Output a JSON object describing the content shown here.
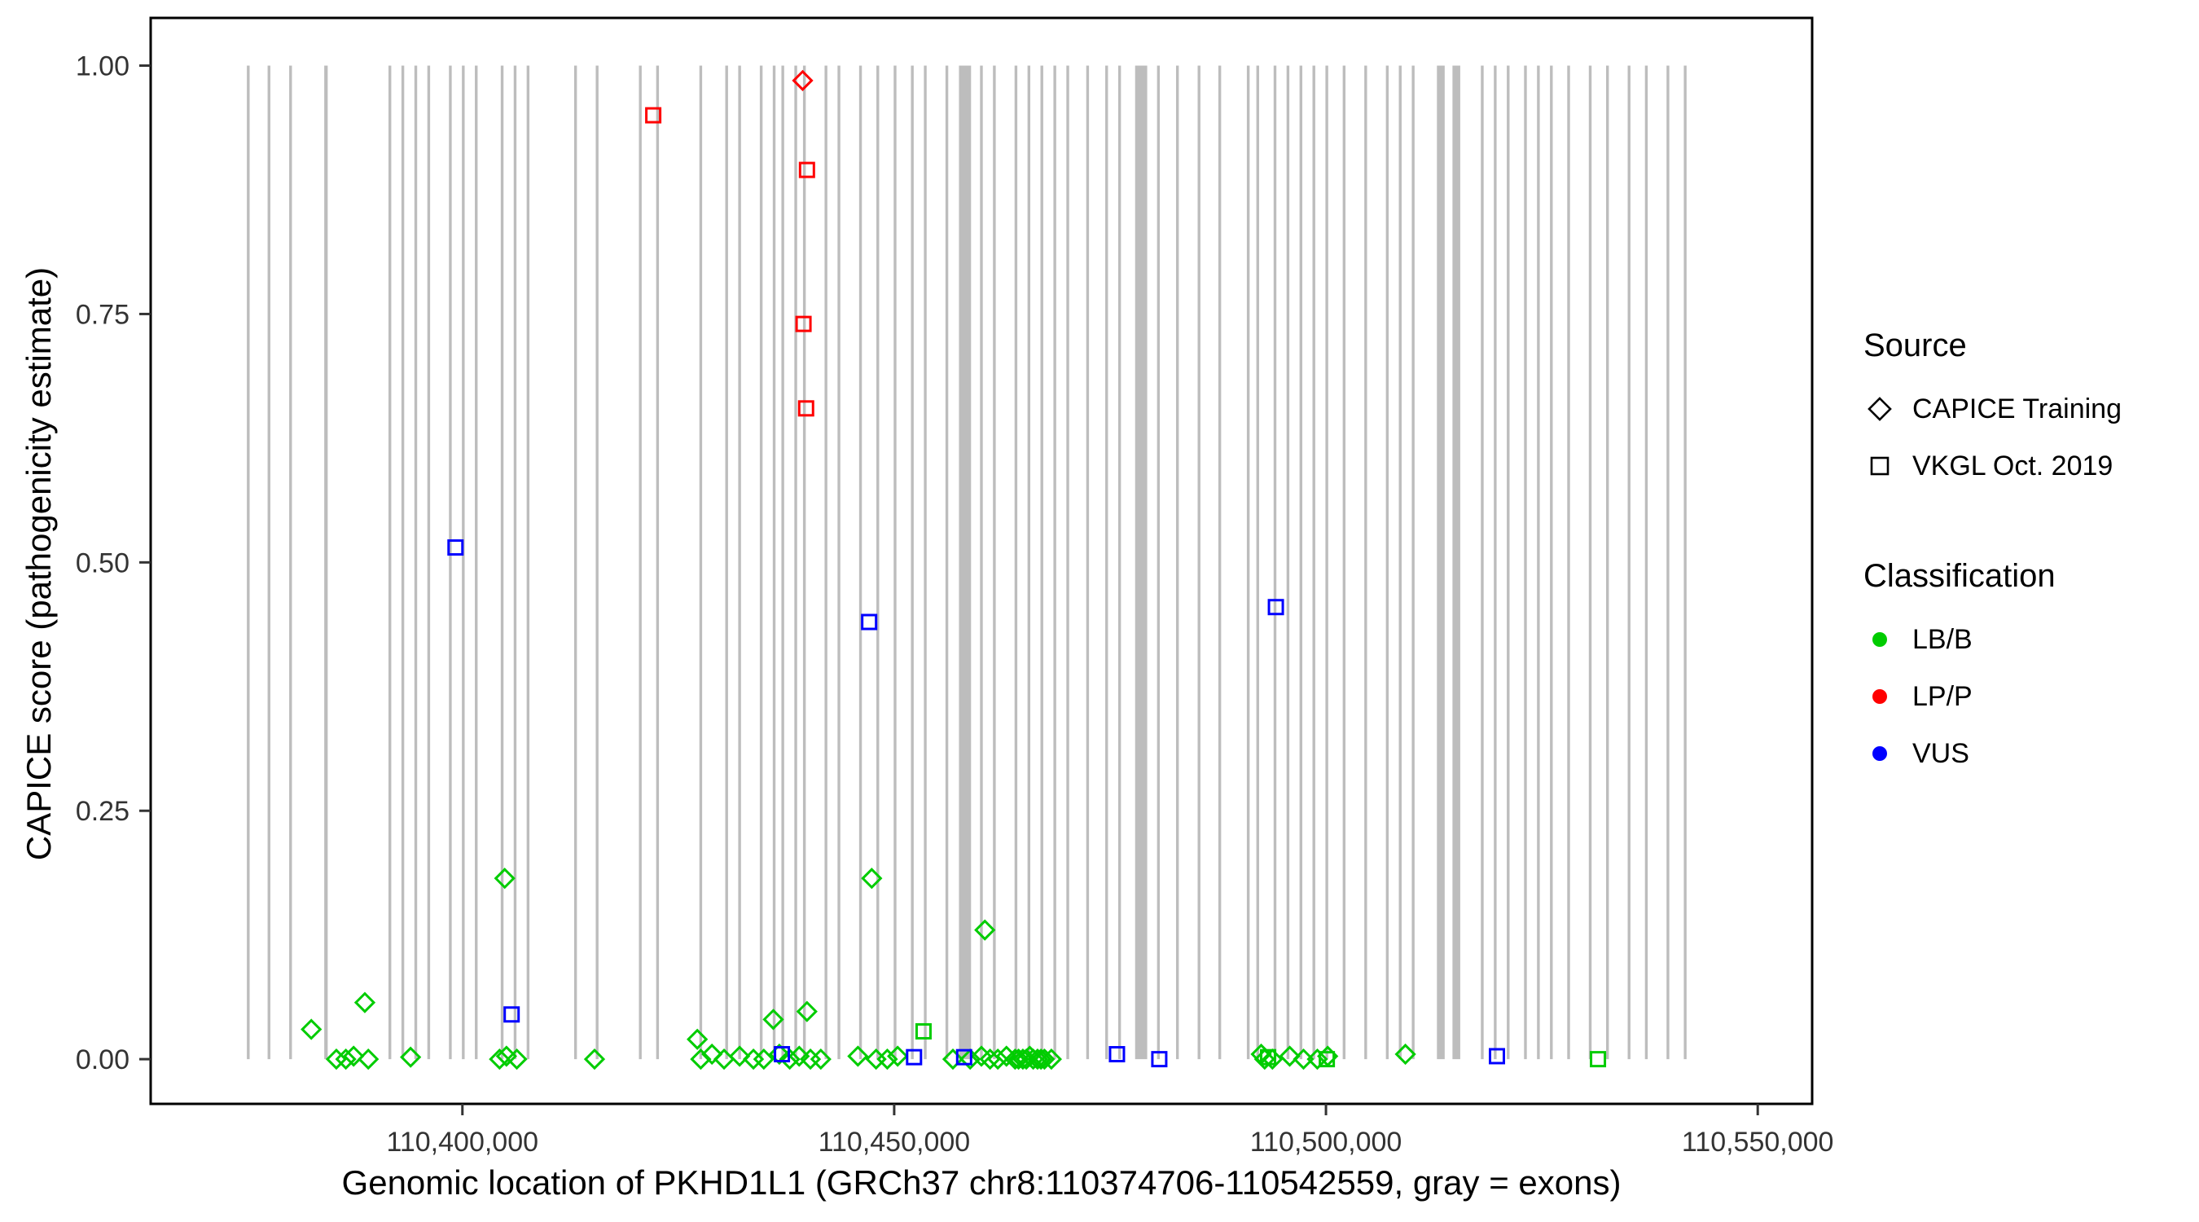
{
  "chart_data": {
    "type": "scatter",
    "title": "",
    "xlabel": "Genomic location of PKHD1L1 (GRCh37 chr8:110374706-110542559, gray = exons)",
    "ylabel": "CAPICE score (pathogenicity estimate)",
    "xlim": [
      110363900,
      110556300
    ],
    "ylim": [
      -0.045,
      1.048
    ],
    "x_ticks": {
      "values": [
        110400000,
        110450000,
        110500000,
        110550000
      ],
      "labels": [
        "110,400,000",
        "110,450,000",
        "110,500,000",
        "110,550,000"
      ]
    },
    "y_ticks": {
      "values": [
        0,
        0.25,
        0.5,
        0.75,
        1.0
      ],
      "labels": [
        "0.00",
        "0.25",
        "0.50",
        "0.75",
        "1.00"
      ]
    },
    "colors": {
      "LB/B": "#00cc00",
      "LP/P": "#ff0000",
      "VUS": "#0000ff",
      "exon": "#bdbdbd",
      "axis": "#333333"
    },
    "exons": [
      [
        110375200,
        300
      ],
      [
        110377600,
        300
      ],
      [
        110380100,
        300
      ],
      [
        110384200,
        400
      ],
      [
        110391600,
        300
      ],
      [
        110393100,
        300
      ],
      [
        110394600,
        300
      ],
      [
        110396100,
        300
      ],
      [
        110398600,
        300
      ],
      [
        110400100,
        300
      ],
      [
        110401600,
        300
      ],
      [
        110404600,
        300
      ],
      [
        110406100,
        300
      ],
      [
        110407600,
        300
      ],
      [
        110413100,
        300
      ],
      [
        110415600,
        300
      ],
      [
        110420600,
        300
      ],
      [
        110422600,
        300
      ],
      [
        110427600,
        300
      ],
      [
        110430600,
        300
      ],
      [
        110432100,
        300
      ],
      [
        110434600,
        300
      ],
      [
        110436100,
        300
      ],
      [
        110437100,
        300
      ],
      [
        110438600,
        300
      ],
      [
        110439600,
        300
      ],
      [
        110442100,
        300
      ],
      [
        110443600,
        300
      ],
      [
        110446100,
        300
      ],
      [
        110448100,
        300
      ],
      [
        110450100,
        300
      ],
      [
        110452100,
        300
      ],
      [
        110453600,
        300
      ],
      [
        110456100,
        300
      ],
      [
        110458200,
        1400
      ],
      [
        110460100,
        300
      ],
      [
        110461600,
        300
      ],
      [
        110464100,
        300
      ],
      [
        110465600,
        300
      ],
      [
        110467100,
        300
      ],
      [
        110468600,
        300
      ],
      [
        110470100,
        300
      ],
      [
        110472400,
        300
      ],
      [
        110474600,
        300
      ],
      [
        110476100,
        300
      ],
      [
        110478600,
        1400
      ],
      [
        110480600,
        300
      ],
      [
        110482800,
        300
      ],
      [
        110485300,
        300
      ],
      [
        110487700,
        300
      ],
      [
        110491000,
        300
      ],
      [
        110492100,
        300
      ],
      [
        110494100,
        300
      ],
      [
        110495600,
        300
      ],
      [
        110497100,
        300
      ],
      [
        110498600,
        300
      ],
      [
        110500100,
        300
      ],
      [
        110502100,
        300
      ],
      [
        110504600,
        300
      ],
      [
        110507100,
        300
      ],
      [
        110508600,
        300
      ],
      [
        110510100,
        300
      ],
      [
        110513300,
        900
      ],
      [
        110515100,
        900
      ],
      [
        110518100,
        300
      ],
      [
        110519600,
        300
      ],
      [
        110521100,
        300
      ],
      [
        110523100,
        300
      ],
      [
        110524600,
        300
      ],
      [
        110526100,
        300
      ],
      [
        110528100,
        300
      ],
      [
        110530600,
        300
      ],
      [
        110532600,
        300
      ],
      [
        110535100,
        300
      ],
      [
        110537100,
        300
      ],
      [
        110539600,
        300
      ],
      [
        110541600,
        300
      ]
    ],
    "series": [
      {
        "name": "LB/B — CAPICE Training",
        "classification": "LB/B",
        "source": "CAPICE Training",
        "shape": "diamond",
        "color": "#00cc00",
        "points": [
          [
            110382500,
            0.03
          ],
          [
            110385400,
            0
          ],
          [
            110386500,
            0
          ],
          [
            110387400,
            0.003
          ],
          [
            110388700,
            0.057
          ],
          [
            110389100,
            0
          ],
          [
            110394000,
            0.002
          ],
          [
            110404300,
            0
          ],
          [
            110404900,
            0.182
          ],
          [
            110405100,
            0.003
          ],
          [
            110406300,
            0
          ],
          [
            110415300,
            0
          ],
          [
            110427200,
            0.02
          ],
          [
            110427600,
            0
          ],
          [
            110428900,
            0.005
          ],
          [
            110430300,
            0
          ],
          [
            110432100,
            0.003
          ],
          [
            110433700,
            0
          ],
          [
            110434900,
            0
          ],
          [
            110436000,
            0.04
          ],
          [
            110436700,
            0.005
          ],
          [
            110437900,
            0
          ],
          [
            110439000,
            0.003
          ],
          [
            110439900,
            0.048
          ],
          [
            110440300,
            0
          ],
          [
            110441500,
            0
          ],
          [
            110445800,
            0.003
          ],
          [
            110447400,
            0.182
          ],
          [
            110447900,
            0
          ],
          [
            110449200,
            0
          ],
          [
            110450400,
            0.003
          ],
          [
            110456800,
            0
          ],
          [
            110458800,
            0
          ],
          [
            110460100,
            0.003
          ],
          [
            110460500,
            0.13
          ],
          [
            110461100,
            0
          ],
          [
            110462000,
            0
          ],
          [
            110463000,
            0.003
          ],
          [
            110464000,
            0
          ],
          [
            110464400,
            0
          ],
          [
            110464900,
            0
          ],
          [
            110465300,
            0
          ],
          [
            110465700,
            0.003
          ],
          [
            110466100,
            0
          ],
          [
            110466600,
            0
          ],
          [
            110467000,
            0
          ],
          [
            110467400,
            0
          ],
          [
            110468200,
            0
          ],
          [
            110492500,
            0.005
          ],
          [
            110492900,
            0
          ],
          [
            110493800,
            0
          ],
          [
            110495800,
            0.003
          ],
          [
            110497400,
            0
          ],
          [
            110499000,
            0
          ],
          [
            110500200,
            0.003
          ],
          [
            110509200,
            0.005
          ]
        ]
      },
      {
        "name": "LB/B — VKGL Oct. 2019",
        "classification": "LB/B",
        "source": "VKGL Oct. 2019",
        "shape": "square",
        "color": "#00cc00",
        "points": [
          [
            110453400,
            0.028
          ],
          [
            110493300,
            0.002
          ],
          [
            110500100,
            0
          ],
          [
            110531500,
            0
          ]
        ]
      },
      {
        "name": "VUS — VKGL Oct. 2019",
        "classification": "VUS",
        "source": "VKGL Oct. 2019",
        "shape": "square",
        "color": "#0000ff",
        "points": [
          [
            110399200,
            0.515
          ],
          [
            110447100,
            0.44
          ],
          [
            110494200,
            0.455
          ],
          [
            110405700,
            0.045
          ],
          [
            110437000,
            0.005
          ],
          [
            110452300,
            0.002
          ],
          [
            110458100,
            0.002
          ],
          [
            110475800,
            0.005
          ],
          [
            110480700,
            0
          ],
          [
            110519800,
            0.003
          ]
        ]
      },
      {
        "name": "LP/P — VKGL Oct. 2019",
        "classification": "LP/P",
        "source": "VKGL Oct. 2019",
        "shape": "square",
        "color": "#ff0000",
        "points": [
          [
            110422100,
            0.95
          ],
          [
            110439900,
            0.895
          ],
          [
            110439500,
            0.74
          ],
          [
            110439800,
            0.655
          ]
        ]
      },
      {
        "name": "LP/P — CAPICE Training",
        "classification": "LP/P",
        "source": "CAPICE Training",
        "shape": "diamond",
        "color": "#ff0000",
        "points": [
          [
            110439400,
            0.985
          ]
        ]
      }
    ]
  },
  "legend": {
    "source": {
      "title": "Source",
      "items": [
        {
          "label": "CAPICE Training",
          "shape": "diamond"
        },
        {
          "label": "VKGL Oct. 2019",
          "shape": "square"
        }
      ]
    },
    "classification": {
      "title": "Classification",
      "items": [
        {
          "label": "LB/B",
          "color": "#00cc00"
        },
        {
          "label": "LP/P",
          "color": "#ff0000"
        },
        {
          "label": "VUS",
          "color": "#0000ff"
        }
      ]
    }
  }
}
